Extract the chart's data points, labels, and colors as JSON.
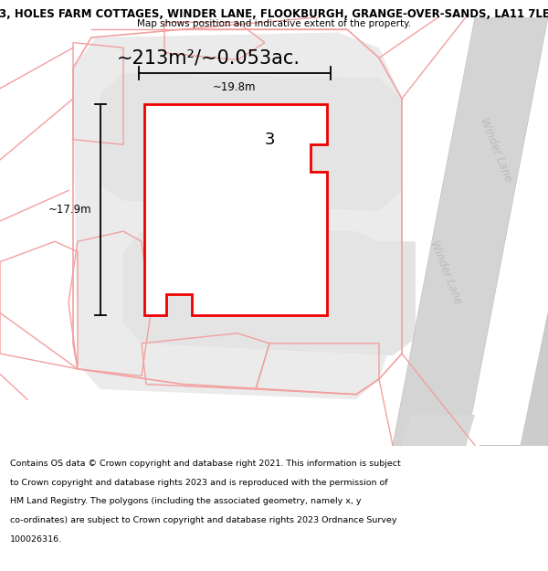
{
  "title": "3, HOLES FARM COTTAGES, WINDER LANE, FLOOKBURGH, GRANGE-OVER-SANDS, LA11 7LE",
  "subtitle": "Map shows position and indicative extent of the property.",
  "area_text": "~213m²/~0.053ac.",
  "dim_width": "~19.8m",
  "dim_height": "~17.9m",
  "label": "3",
  "footer_lines": [
    "Contains OS data © Crown copyright and database right 2021. This information is subject",
    "to Crown copyright and database rights 2023 and is reproduced with the permission of",
    "HM Land Registry. The polygons (including the associated geometry, namely x, y",
    "co-ordinates) are subject to Crown copyright and database rights 2023 Ordnance Survey",
    "100026316."
  ],
  "bg_color": "#ffffff",
  "pink": "#f2a0a0",
  "red": "#ee0000",
  "gray_fill": "#e0e0e0",
  "road_fill": "#d4d4d4",
  "road_edge": "#c0c0c0",
  "winder_lane_color": "#bbbbbb",
  "title_fontsize": 8.5,
  "subtitle_fontsize": 7.5,
  "area_fontsize": 15,
  "label_fontsize": 13,
  "dim_fontsize": 8.5,
  "footer_fontsize": 6.8,
  "winder_fontsize": 8.5
}
